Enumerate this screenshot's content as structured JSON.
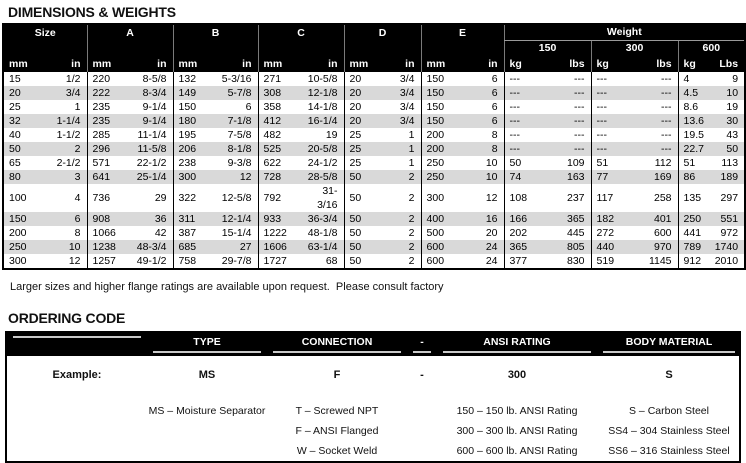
{
  "colors": {
    "header_bg": "#000000",
    "row_stripe": "#d9d9d9",
    "text": "#000000"
  },
  "page": {
    "dimensions_title": "DIMENSIONS & WEIGHTS",
    "note": "Larger sizes and higher flange ratings are available upon request.  Please consult factory",
    "ordering_title": "ORDERING CODE"
  },
  "dimensions_table": {
    "group_labels": [
      "Size",
      "A",
      "B",
      "C",
      "D",
      "E"
    ],
    "weight_label": "Weight",
    "ratings": [
      "150",
      "300",
      "600"
    ],
    "units": [
      "mm",
      "in",
      "mm",
      "in",
      "mm",
      "in",
      "mm",
      "in",
      "mm",
      "in",
      "mm",
      "in",
      "kg",
      "lbs",
      "kg",
      "lbs",
      "kg",
      "Lbs"
    ],
    "rows": [
      [
        "15",
        "1/2",
        "220",
        "8-5/8",
        "132",
        "5-3/16",
        "271",
        "10-5/8",
        "20",
        "3/4",
        "150",
        "6",
        "---",
        "---",
        "---",
        "---",
        "4",
        "9"
      ],
      [
        "20",
        "3/4",
        "222",
        "8-3/4",
        "149",
        "5-7/8",
        "308",
        "12-1/8",
        "20",
        "3/4",
        "150",
        "6",
        "---",
        "---",
        "---",
        "---",
        "4.5",
        "10"
      ],
      [
        "25",
        "1",
        "235",
        "9-1/4",
        "150",
        "6",
        "358",
        "14-1/8",
        "20",
        "3/4",
        "150",
        "6",
        "---",
        "---",
        "---",
        "---",
        "8.6",
        "19"
      ],
      [
        "32",
        "1-1/4",
        "235",
        "9-1/4",
        "180",
        "7-1/8",
        "412",
        "16-1/4",
        "20",
        "3/4",
        "150",
        "6",
        "---",
        "---",
        "---",
        "---",
        "13.6",
        "30"
      ],
      [
        "40",
        "1-1/2",
        "285",
        "11-1/4",
        "195",
        "7-5/8",
        "482",
        "19",
        "25",
        "1",
        "200",
        "8",
        "---",
        "---",
        "---",
        "---",
        "19.5",
        "43"
      ],
      [
        "50",
        "2",
        "296",
        "11-5/8",
        "206",
        "8-1/8",
        "525",
        "20-5/8",
        "25",
        "1",
        "200",
        "8",
        "---",
        "---",
        "---",
        "---",
        "22.7",
        "50"
      ],
      [
        "65",
        "2-1/2",
        "571",
        "22-1/2",
        "238",
        "9-3/8",
        "622",
        "24-1/2",
        "25",
        "1",
        "250",
        "10",
        "50",
        "109",
        "51",
        "112",
        "51",
        "113"
      ],
      [
        "80",
        "3",
        "641",
        "25-1/4",
        "300",
        "12",
        "728",
        "28-5/8",
        "50",
        "2",
        "250",
        "10",
        "74",
        "163",
        "77",
        "169",
        "86",
        "189"
      ],
      [
        "100",
        "4",
        "736",
        "29",
        "322",
        "12-5/8",
        "792",
        "31-3/16",
        "50",
        "2",
        "300",
        "12",
        "108",
        "237",
        "117",
        "258",
        "135",
        "297"
      ],
      [
        "150",
        "6",
        "908",
        "36",
        "311",
        "12-1/4",
        "933",
        "36-3/4",
        "50",
        "2",
        "400",
        "16",
        "166",
        "365",
        "182",
        "401",
        "250",
        "551"
      ],
      [
        "200",
        "8",
        "1066",
        "42",
        "387",
        "15-1/4",
        "1222",
        "48-1/8",
        "50",
        "2",
        "500",
        "20",
        "202",
        "445",
        "272",
        "600",
        "441",
        "972"
      ],
      [
        "250",
        "10",
        "1238",
        "48-3/4",
        "685",
        "27",
        "1606",
        "63-1/4",
        "50",
        "2",
        "600",
        "24",
        "365",
        "805",
        "440",
        "970",
        "789",
        "1740"
      ],
      [
        "300",
        "12",
        "1257",
        "49-1/2",
        "758",
        "29-7/8",
        "1727",
        "68",
        "50",
        "2",
        "600",
        "24",
        "377",
        "830",
        "519",
        "1145",
        "912",
        "2010"
      ]
    ]
  },
  "ordering_table": {
    "headers": [
      "",
      "TYPE",
      "CONNECTION",
      "-",
      "ANSI RATING",
      "BODY MATERIAL"
    ],
    "example_row": [
      "Example:",
      "MS",
      "F",
      "-",
      "300",
      "S"
    ],
    "option_rows": [
      [
        "",
        "MS – Moisture Separator",
        "T – Screwed NPT",
        "",
        "150 – 150 lb. ANSI Rating",
        "S – Carbon Steel"
      ],
      [
        "",
        "",
        "F – ANSI Flanged",
        "",
        "300 – 300 lb. ANSI Rating",
        "SS4 – 304 Stainless Steel"
      ],
      [
        "",
        "",
        "W – Socket Weld",
        "",
        "600 – 600 lb. ANSI Rating",
        "SS6 – 316 Stainless Steel"
      ]
    ]
  }
}
